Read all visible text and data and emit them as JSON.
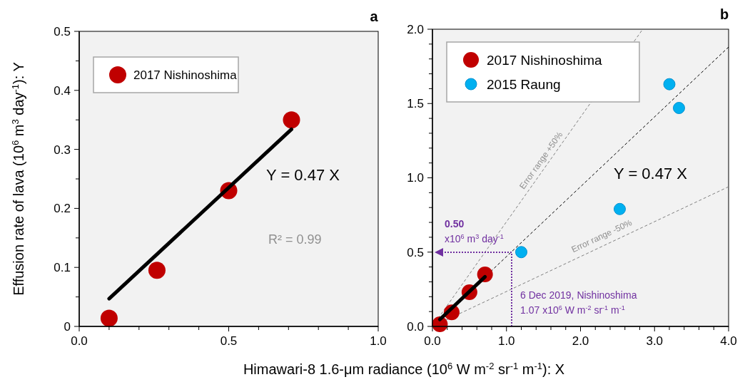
{
  "chart_data": [
    {
      "type": "scatter",
      "title": "a",
      "ylabel": "Effusion rate of lava (10$^{6}$ m$^{3}$ day$^{-1}$): Y",
      "legend": "top left",
      "marker": "circle",
      "xlim": [
        0,
        1
      ],
      "ylim": [
        0,
        0.5
      ],
      "xticks": [
        {
          "value": 0,
          "label": "0.0"
        },
        {
          "value": 0.1,
          "label": null
        },
        {
          "value": 0.2,
          "label": null
        },
        {
          "value": 0.3,
          "label": null
        },
        {
          "value": 0.4,
          "label": null
        },
        {
          "value": 0.5,
          "label": "0.5"
        },
        {
          "value": 0.6,
          "label": null
        },
        {
          "value": 0.7,
          "label": null
        },
        {
          "value": 0.8,
          "label": null
        },
        {
          "value": 0.9,
          "label": null
        },
        {
          "value": 1,
          "label": "1.0"
        }
      ],
      "yticks": [
        0,
        {
          "value": 0.05,
          "label": null
        },
        0.1,
        {
          "value": 0.15,
          "label": null
        },
        0.2,
        {
          "value": 0.25,
          "label": null
        },
        0.3,
        {
          "value": 0.35,
          "label": null
        },
        0.4,
        {
          "value": 0.45,
          "label": null
        },
        0.5
      ],
      "series": [
        {
          "name": "2017 Nishinoshima",
          "color": "#c00000",
          "x": [
            0.1,
            0.26,
            0.5,
            0.71
          ],
          "values": [
            0.014,
            0.095,
            0.23,
            0.35
          ]
        },
        {
          "type": "line",
          "color": "#000000",
          "x": [
            0.1,
            0.71
          ],
          "values": [
            0.047,
            0.334
          ],
          "line_style": "solid",
          "marker": "none"
        }
      ],
      "annotations": [
        "Y = 0.47 X",
        "R² = 0.99"
      ]
    },
    {
      "type": "scatter",
      "title": "b",
      "xlabel": "Himawari-8 1.6-μm radiance  (10$^{6}$ W m$^{-2}$ sr$^{-1}$ m$^{-1}$): X",
      "legend": "top left",
      "marker": "circle",
      "xlim": [
        0,
        4
      ],
      "ylim": [
        0,
        2
      ],
      "xticks": [
        {
          "value": 0,
          "label": "0.0"
        },
        {
          "value": 0.2,
          "label": null
        },
        {
          "value": 0.4,
          "label": null
        },
        {
          "value": 0.6,
          "label": null
        },
        {
          "value": 0.8,
          "label": null
        },
        {
          "value": 1,
          "label": "1.0"
        },
        {
          "value": 1.2,
          "label": null
        },
        {
          "value": 1.4,
          "label": null
        },
        {
          "value": 1.6,
          "label": null
        },
        {
          "value": 1.8,
          "label": null
        },
        {
          "value": 2,
          "label": "2.0"
        },
        {
          "value": 2.2,
          "label": null
        },
        {
          "value": 2.4,
          "label": null
        },
        {
          "value": 2.6,
          "label": null
        },
        {
          "value": 2.8,
          "label": null
        },
        {
          "value": 3,
          "label": "3.0"
        },
        {
          "value": 3.2,
          "label": null
        },
        {
          "value": 3.4,
          "label": null
        },
        {
          "value": 3.6,
          "label": null
        },
        {
          "value": 3.8,
          "label": null
        },
        {
          "value": 4,
          "label": "4.0"
        }
      ],
      "yticks": [
        {
          "value": 0,
          "label": "0.0"
        },
        {
          "value": 0.1,
          "label": null
        },
        {
          "value": 0.2,
          "label": null
        },
        {
          "value": 0.3,
          "label": null
        },
        {
          "value": 0.4,
          "label": null
        },
        0.5,
        {
          "value": 0.6,
          "label": null
        },
        {
          "value": 0.7,
          "label": null
        },
        {
          "value": 0.8,
          "label": null
        },
        {
          "value": 0.9,
          "label": null
        },
        {
          "value": 1,
          "label": "1.0"
        },
        {
          "value": 1.1,
          "label": null
        },
        {
          "value": 1.2,
          "label": null
        },
        {
          "value": 1.3,
          "label": null
        },
        {
          "value": 1.4,
          "label": null
        },
        1.5,
        {
          "value": 1.6,
          "label": null
        },
        {
          "value": 1.7,
          "label": null
        },
        {
          "value": 1.8,
          "label": null
        },
        {
          "value": 1.9,
          "label": null
        },
        {
          "value": 2,
          "label": "2.0"
        }
      ],
      "series": [
        {
          "type": "line",
          "color": "#808080",
          "x": [
            0,
            2.84
          ],
          "values": [
            0,
            2.0
          ],
          "line_style": "dashed",
          "marker": "none"
        },
        {
          "type": "line",
          "color": "#808080",
          "x": [
            0,
            4
          ],
          "values": [
            0,
            0.94
          ],
          "line_style": "dashed",
          "marker": "none"
        },
        {
          "type": "line",
          "color": "#000000",
          "x": [
            0,
            4
          ],
          "values": [
            0,
            1.88
          ],
          "line_style": "dashed",
          "marker": "none"
        },
        {
          "name": "2017 Nishinoshima",
          "color": "#c00000",
          "x": [
            0.1,
            0.26,
            0.5,
            0.71
          ],
          "values": [
            0.014,
            0.095,
            0.23,
            0.35
          ]
        },
        {
          "type": "line",
          "color": "#000000",
          "x": [
            0.1,
            0.71
          ],
          "values": [
            0.047,
            0.334
          ],
          "line_style": "solid",
          "marker": "none"
        },
        {
          "name": "2015 Raung",
          "color": "#00b0f0",
          "x": [
            1.2,
            2.53,
            3.2,
            3.33
          ],
          "values": [
            0.5,
            0.79,
            1.63,
            1.47
          ]
        }
      ],
      "annotations": [
        "Y = 0.47 X",
        "Error range +50%",
        "Error range -50%",
        "0.50",
        "x10$^{6}$ m$^{3}$ day$^{-1}$",
        "6 Dec 2019, Nishinoshima",
        "1.07 x10$^{6}$  W m$^{-2}$ sr$^{-1}$ m$^{-1}$"
      ]
    }
  ]
}
